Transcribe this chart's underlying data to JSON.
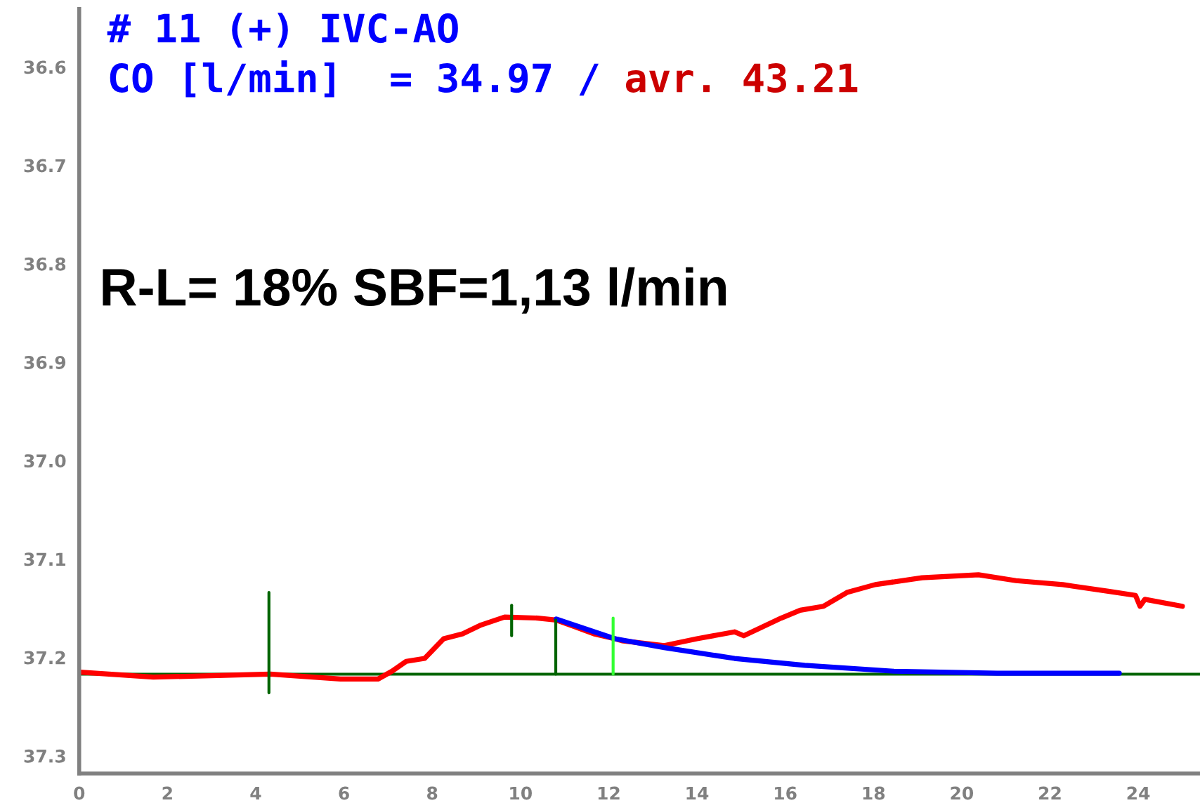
{
  "chart_data": {
    "type": "line",
    "title": "# 11 (+) IVC-AO",
    "subtitle": "CO [l/min]  = 34.97 /",
    "annotations": [
      "avr. 43.21",
      "R-L= 18% SBF=1,13 l/min"
    ],
    "xlim": [
      0,
      25.4
    ],
    "ylim": [
      37.318,
      36.541
    ],
    "xticks": [
      0,
      2,
      4,
      6,
      8,
      10,
      12,
      14,
      16,
      18,
      20,
      22,
      24
    ],
    "yticks": [
      {
        "value": 36.6,
        "label": "36.6"
      },
      {
        "value": 36.7,
        "label": "36.7"
      },
      {
        "value": 36.8,
        "label": "36.8"
      },
      {
        "value": 36.9,
        "label": "36.9"
      },
      {
        "value": 37.0,
        "label": "37.0"
      },
      {
        "value": 37.1,
        "label": "37.1"
      },
      {
        "value": 37.2,
        "label": "37.2"
      },
      {
        "value": 37.3,
        "label": "37.3"
      }
    ],
    "grid": false,
    "legend": false,
    "ref_lines": [
      {
        "axis": "y",
        "value": 37.217,
        "color": "#006400",
        "line_style": "solid"
      }
    ],
    "series": [
      {
        "color": "#ff0000",
        "x": [
          0.02,
          1.68,
          4.33,
          5.92,
          6.77,
          7.09,
          7.41,
          7.83,
          8.26,
          8.69,
          9.11,
          9.64,
          10.39,
          10.81,
          11.24,
          11.66,
          12.14,
          12.3,
          13.26,
          14.0,
          14.85,
          15.06,
          15.91,
          16.34,
          16.87,
          17.4,
          18.04,
          19.1,
          20.38,
          21.23,
          22.29,
          23.35,
          23.94,
          24.04,
          24.15,
          25.0
        ],
        "values": [
          37.215,
          37.22,
          37.217,
          37.222,
          37.222,
          37.214,
          37.204,
          37.201,
          37.181,
          37.176,
          37.167,
          37.159,
          37.16,
          37.162,
          37.169,
          37.176,
          37.181,
          37.183,
          37.188,
          37.181,
          37.174,
          37.178,
          37.16,
          37.152,
          37.148,
          37.134,
          37.126,
          37.119,
          37.116,
          37.122,
          37.126,
          37.133,
          37.137,
          37.148,
          37.141,
          37.148
        ]
      },
      {
        "color": "#0000ff",
        "x": [
          10.81,
          12.14,
          13.26,
          14.85,
          16.44,
          18.46,
          20.8,
          23.57
        ],
        "values": [
          37.161,
          37.181,
          37.19,
          37.201,
          37.208,
          37.214,
          37.216,
          37.216
        ]
      },
      {
        "color": "#006400",
        "x": [
          4.3,
          4.3
        ],
        "values": [
          37.134,
          37.236
        ]
      },
      {
        "color": "#006400",
        "x": [
          9.8,
          9.8
        ],
        "values": [
          37.147,
          37.178
        ]
      },
      {
        "color": "#006400",
        "x": [
          10.8,
          10.8
        ],
        "values": [
          37.162,
          37.217
        ]
      },
      {
        "color": "#33ff33",
        "x": [
          12.1,
          12.1
        ],
        "values": [
          37.16,
          37.217
        ]
      }
    ]
  }
}
